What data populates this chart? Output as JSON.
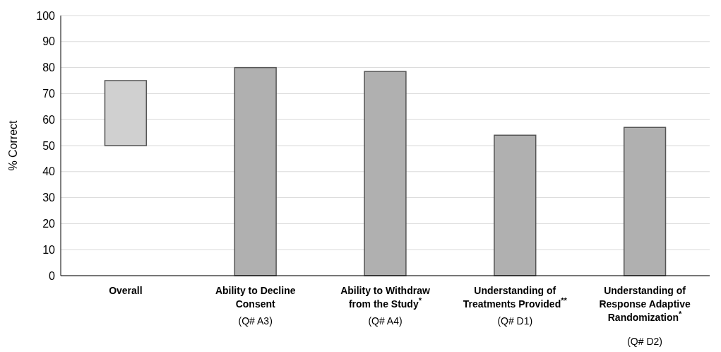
{
  "chart_data": {
    "type": "bar",
    "ylabel": "% Correct",
    "categories": [
      "Overall",
      "Ability to Decline\nConsent\n(Q# A3)",
      "Ability to Withdraw\nfrom the Study$^{*}$\n(Q# A4)",
      "Understanding of\nTreatments Provided$^{**}$\n(Q# D1)",
      "Understanding of\nResponse Adaptive\nRandomization$^{*}$\n(Q# D2)"
    ],
    "values": [
      25,
      80,
      78.5,
      54,
      57
    ],
    "base": [
      50,
      0,
      0,
      0,
      0
    ],
    "colors": [
      "#d0d0d0",
      "#b0b0b0",
      "#b0b0b0",
      "#b0b0b0",
      "#b0b0b0"
    ],
    "ylim": [
      0,
      100
    ],
    "yticks": [
      0,
      10,
      20,
      30,
      40,
      50,
      60,
      70,
      80,
      90,
      100
    ],
    "grid": "y"
  }
}
